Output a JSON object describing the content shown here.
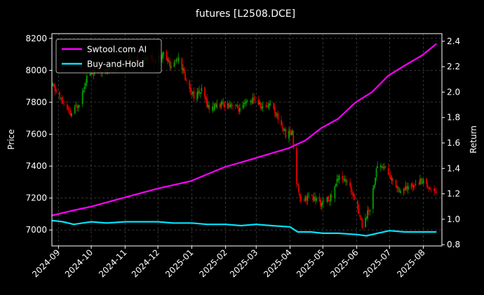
{
  "chart_data": {
    "type": "line",
    "title": "futures [L2508.DCE]",
    "ylabel": "Price",
    "y2label": "Return",
    "ylim": [
      6900,
      8230
    ],
    "y2lim": [
      0.79,
      2.46
    ],
    "xlim": [
      "2024-08-26",
      "2025-08-18"
    ],
    "yticks": [
      7000,
      7200,
      7400,
      7600,
      7800,
      8000,
      8200
    ],
    "y2ticks": [
      0.8,
      1.0,
      1.2,
      1.4,
      1.6,
      1.8,
      2.0,
      2.2,
      2.4
    ],
    "xticks": [
      "2024-09-01",
      "2024-10-01",
      "2024-11-01",
      "2024-12-01",
      "2025-01-01",
      "2025-02-01",
      "2025-03-01",
      "2025-04-01",
      "2025-05-01",
      "2025-06-01",
      "2025-07-01",
      "2025-08-01"
    ],
    "xtick_labels": [
      "2024-09",
      "2024-10",
      "2024-11",
      "2024-12",
      "2025-01",
      "2025-02",
      "2025-03",
      "2025-04",
      "2025-05",
      "2025-06",
      "2025-07",
      "2025-08"
    ],
    "grid": true,
    "legend_position": "top-left",
    "candle_up_color": "#00a000",
    "candle_down_color": "#e00000",
    "price_points": [
      [
        "2024-08-27",
        7900
      ],
      [
        "2024-09-05",
        7795
      ],
      [
        "2024-09-12",
        7720
      ],
      [
        "2024-09-20",
        7800
      ],
      [
        "2024-09-27",
        7960
      ],
      [
        "2024-10-08",
        8010
      ],
      [
        "2024-10-15",
        7990
      ],
      [
        "2024-10-25",
        8020
      ],
      [
        "2024-11-01",
        8040
      ],
      [
        "2024-11-08",
        8080
      ],
      [
        "2024-11-15",
        8050
      ],
      [
        "2024-11-22",
        8090
      ],
      [
        "2024-11-29",
        8060
      ],
      [
        "2024-12-06",
        8110
      ],
      [
        "2024-12-13",
        8020
      ],
      [
        "2024-12-20",
        8090
      ],
      [
        "2024-12-27",
        7930
      ],
      [
        "2025-01-03",
        7840
      ],
      [
        "2025-01-10",
        7870
      ],
      [
        "2025-01-17",
        7760
      ],
      [
        "2025-01-24",
        7780
      ],
      [
        "2025-02-07",
        7790
      ],
      [
        "2025-02-14",
        7750
      ],
      [
        "2025-02-21",
        7800
      ],
      [
        "2025-02-28",
        7820
      ],
      [
        "2025-03-07",
        7760
      ],
      [
        "2025-03-14",
        7800
      ],
      [
        "2025-03-21",
        7700
      ],
      [
        "2025-03-28",
        7600
      ],
      [
        "2025-04-03",
        7610
      ],
      [
        "2025-04-07",
        7300
      ],
      [
        "2025-04-11",
        7190
      ],
      [
        "2025-04-18",
        7210
      ],
      [
        "2025-04-25",
        7190
      ],
      [
        "2025-04-30",
        7160
      ],
      [
        "2025-05-09",
        7210
      ],
      [
        "2025-05-16",
        7350
      ],
      [
        "2025-05-23",
        7290
      ],
      [
        "2025-05-30",
        7210
      ],
      [
        "2025-06-06",
        7030
      ],
      [
        "2025-06-13",
        7140
      ],
      [
        "2025-06-20",
        7410
      ],
      [
        "2025-06-27",
        7390
      ],
      [
        "2025-07-04",
        7300
      ],
      [
        "2025-07-11",
        7250
      ],
      [
        "2025-07-18",
        7260
      ],
      [
        "2025-07-25",
        7300
      ],
      [
        "2025-08-01",
        7310
      ],
      [
        "2025-08-08",
        7250
      ],
      [
        "2025-08-13",
        7250
      ]
    ],
    "series": [
      {
        "name": "Swtool.com AI",
        "color": "#ff00ff",
        "x": [
          "2024-08-26",
          "2024-09-15",
          "2024-10-01",
          "2024-10-31",
          "2024-11-30",
          "2024-12-31",
          "2025-01-31",
          "2025-02-28",
          "2025-03-31",
          "2025-04-15",
          "2025-04-30",
          "2025-05-15",
          "2025-05-31",
          "2025-06-15",
          "2025-06-30",
          "2025-07-15",
          "2025-07-31",
          "2025-08-13"
        ],
        "values": [
          1.03,
          1.07,
          1.1,
          1.17,
          1.24,
          1.3,
          1.41,
          1.48,
          1.56,
          1.62,
          1.72,
          1.79,
          1.92,
          2.0,
          2.13,
          2.21,
          2.29,
          2.38
        ]
      },
      {
        "name": "Buy-and-Hold",
        "color": "#00e5ff",
        "x": [
          "2024-08-26",
          "2024-09-05",
          "2024-09-15",
          "2024-10-01",
          "2024-10-15",
          "2024-11-01",
          "2024-11-15",
          "2024-12-01",
          "2024-12-15",
          "2025-01-01",
          "2025-01-15",
          "2025-02-01",
          "2025-02-15",
          "2025-03-01",
          "2025-03-15",
          "2025-04-01",
          "2025-04-08",
          "2025-04-20",
          "2025-05-01",
          "2025-05-15",
          "2025-06-01",
          "2025-06-10",
          "2025-06-20",
          "2025-07-01",
          "2025-07-15",
          "2025-08-01",
          "2025-08-13"
        ],
        "values": [
          0.99,
          0.98,
          0.96,
          0.98,
          0.97,
          0.98,
          0.98,
          0.98,
          0.97,
          0.97,
          0.96,
          0.96,
          0.95,
          0.96,
          0.95,
          0.94,
          0.9,
          0.9,
          0.89,
          0.89,
          0.88,
          0.87,
          0.89,
          0.91,
          0.9,
          0.9,
          0.9
        ]
      }
    ]
  }
}
